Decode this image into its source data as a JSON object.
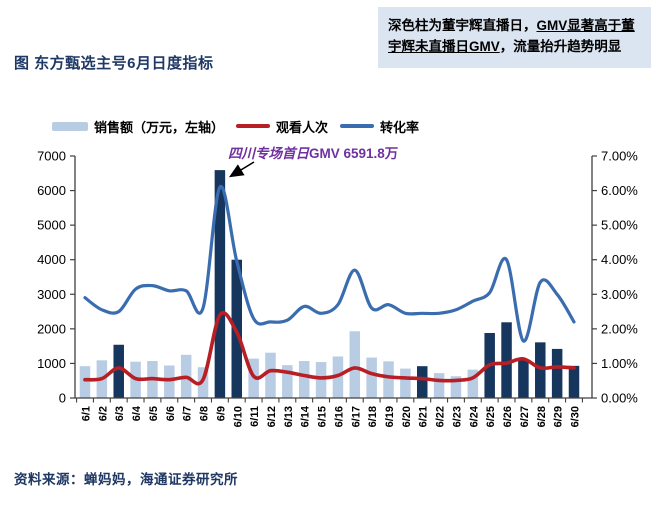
{
  "title": "图  东方甄选主号6月日度指标",
  "note_box": {
    "segment_plain_1": "深色柱为董宇辉直播日，",
    "segment_underlined": "GMV显著高于董宇辉未直播日GMV",
    "segment_plain_2": "，流量抬升趋势明显"
  },
  "legend": {
    "items": [
      {
        "label": "销售额（万元，左轴）",
        "type": "bar",
        "color": "#b8cce4"
      },
      {
        "label": "观看人次",
        "type": "line",
        "color": "#b81f25"
      },
      {
        "label": "转化率",
        "type": "line",
        "color": "#3a6db0"
      }
    ]
  },
  "annotation": {
    "text_prefix": "四川专场首日",
    "text_value": "GMV 6591.8万",
    "color": "#7030a0"
  },
  "source": "资料来源：蝉妈妈，海通证券研究所",
  "colors": {
    "bar_light": "#b8cce4",
    "bar_dark": "#17365d",
    "line_views": "#b81f25",
    "line_conversion": "#3a6db0",
    "axis": "#404040",
    "title_navy": "#1f3864",
    "note_bg": "#dbe5f1",
    "annotation_purple": "#7030a0"
  },
  "chart_data": {
    "type": "combo (bar + 2 lines)",
    "title": "东方甄选主号6月日度指标",
    "categories": [
      "6/1",
      "6/2",
      "6/3",
      "6/4",
      "6/5",
      "6/6",
      "6/7",
      "6/8",
      "6/9",
      "6/10",
      "6/11",
      "6/12",
      "6/13",
      "6/14",
      "6/15",
      "6/16",
      "6/17",
      "6/18",
      "6/19",
      "6/20",
      "6/21",
      "6/22",
      "6/23",
      "6/24",
      "6/25",
      "6/26",
      "6/27",
      "6/28",
      "6/29",
      "6/30"
    ],
    "series": [
      {
        "name": "销售额（万元，左轴）",
        "type": "bar",
        "axis": "left",
        "values": [
          920,
          1090,
          1540,
          1050,
          1070,
          940,
          1250,
          890,
          6591.8,
          4000,
          1140,
          1310,
          950,
          1070,
          1040,
          1200,
          1930,
          1170,
          1060,
          850,
          920,
          720,
          630,
          820,
          1880,
          2190,
          1100,
          1610,
          1420,
          930
        ],
        "dark_is_dongyuhui_live_day": [
          0,
          0,
          1,
          0,
          0,
          0,
          0,
          0,
          1,
          1,
          0,
          0,
          0,
          0,
          0,
          0,
          0,
          0,
          0,
          0,
          1,
          0,
          0,
          0,
          1,
          1,
          1,
          1,
          1,
          1
        ]
      },
      {
        "name": "观看人次",
        "type": "line",
        "axis": "left",
        "values": [
          530,
          560,
          870,
          560,
          560,
          530,
          600,
          530,
          2400,
          1900,
          630,
          790,
          745,
          650,
          580,
          650,
          870,
          705,
          610,
          580,
          560,
          510,
          510,
          580,
          960,
          1010,
          1130,
          870,
          900,
          870
        ]
      },
      {
        "name": "转化率",
        "type": "line",
        "axis": "right",
        "values_percent": [
          2.9,
          2.55,
          2.5,
          3.15,
          3.25,
          3.1,
          3.1,
          2.6,
          6.1,
          3.95,
          2.3,
          2.2,
          2.25,
          2.65,
          2.45,
          2.7,
          3.7,
          2.6,
          2.7,
          2.45,
          2.45,
          2.45,
          2.55,
          2.8,
          3.05,
          4.0,
          1.65,
          3.35,
          3.0,
          2.2
        ]
      }
    ],
    "left_axis": {
      "min": 0,
      "max": 7000,
      "step": 1000,
      "tick_labels": [
        "0",
        "1000",
        "2000",
        "3000",
        "4000",
        "5000",
        "6000",
        "7000"
      ]
    },
    "right_axis": {
      "min": 0,
      "max": 7,
      "step": 1,
      "tick_labels": [
        "0.00%",
        "1.00%",
        "2.00%",
        "3.00%",
        "4.00%",
        "5.00%",
        "6.00%",
        "7.00%"
      ]
    },
    "grid": false,
    "legend_position": "top",
    "annotation_points_to": {
      "category": "6/9",
      "value": 6591.8
    }
  }
}
